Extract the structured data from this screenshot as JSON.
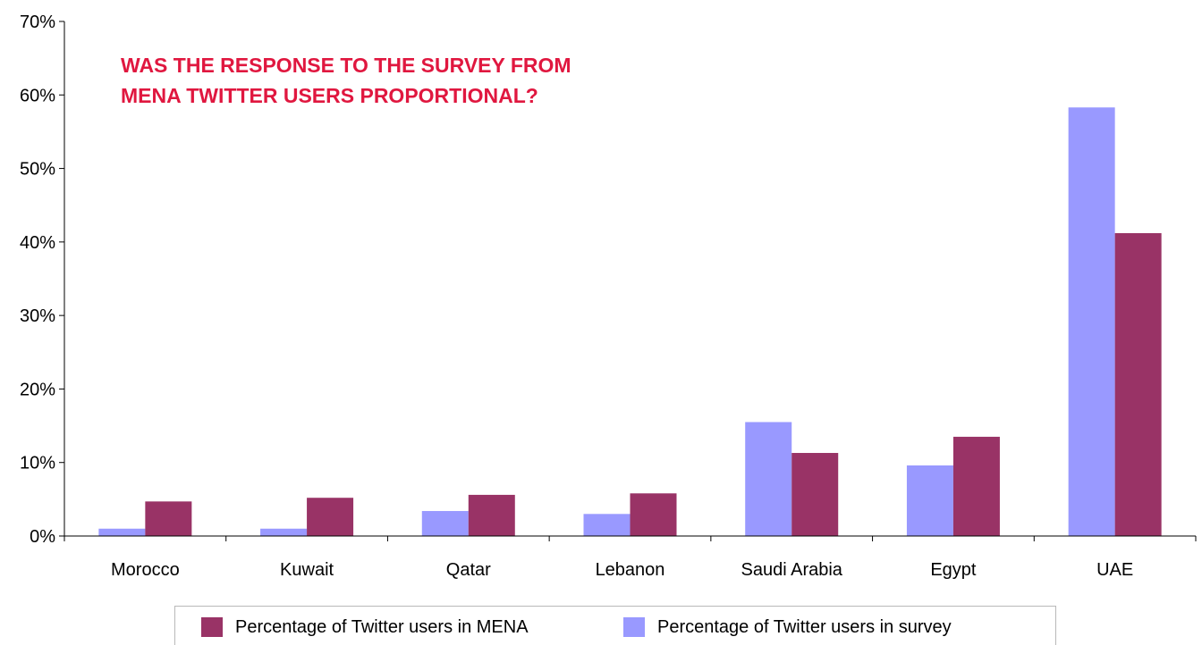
{
  "chart_data": {
    "type": "bar",
    "title": "WAS THE RESPONSE TO THE SURVEY FROM MENA TWITTER USERS PROPORTIONAL?",
    "title_lines": [
      "WAS THE RESPONSE TO THE SURVEY FROM",
      "MENA TWITTER USERS PROPORTIONAL?"
    ],
    "categories": [
      "Morocco",
      "Kuwait",
      "Qatar",
      "Lebanon",
      "Saudi Arabia",
      "Egypt",
      "UAE"
    ],
    "series": [
      {
        "name": "Percentage of Twitter users in survey",
        "color": "#9999ff",
        "values": [
          1.0,
          1.0,
          3.4,
          3.0,
          15.5,
          9.6,
          58.3
        ]
      },
      {
        "name": "Percentage of Twitter users in MENA",
        "color": "#993366",
        "values": [
          4.7,
          5.2,
          5.6,
          5.8,
          11.3,
          13.5,
          41.2
        ]
      }
    ],
    "legend_order": [
      "Percentage of Twitter users in MENA",
      "Percentage of Twitter users in survey"
    ],
    "ylim": [
      0,
      70
    ],
    "yticks": [
      "0%",
      "10%",
      "20%",
      "30%",
      "40%",
      "50%",
      "60%",
      "70%"
    ],
    "xlabel": "",
    "ylabel": "",
    "grid": false,
    "legend_position": "bottom",
    "title_color": "#e0173f"
  }
}
